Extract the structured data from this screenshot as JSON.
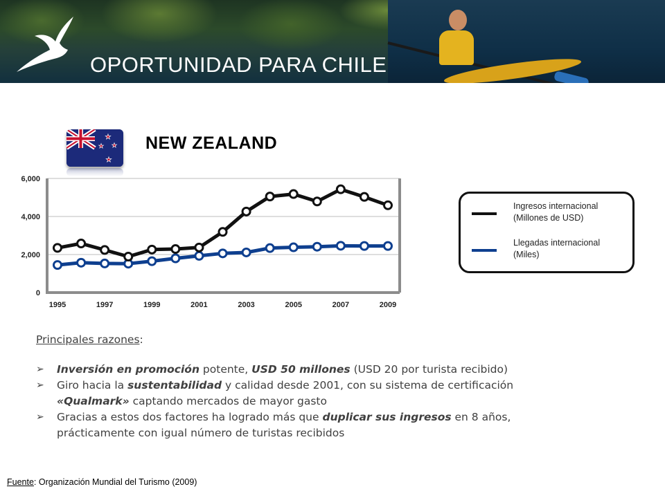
{
  "header": {
    "title": "OPORTUNIDAD PARA CHILE"
  },
  "country": {
    "name": "NEW ZEALAND"
  },
  "chart_data": {
    "type": "line",
    "x": [
      1995,
      1996,
      1997,
      1998,
      1999,
      2000,
      2001,
      2002,
      2003,
      2004,
      2005,
      2006,
      2007,
      2008,
      2009
    ],
    "series": [
      {
        "name": "Ingresos internacional (Millones de USD)",
        "color": "#111111",
        "values": [
          2350,
          2580,
          2240,
          1890,
          2260,
          2290,
          2370,
          3190,
          4260,
          5050,
          5180,
          4790,
          5430,
          5030,
          4590
        ]
      },
      {
        "name": "Llegadas internacional (Miles)",
        "color": "#0e3f8f",
        "values": [
          1450,
          1570,
          1530,
          1520,
          1650,
          1800,
          1930,
          2060,
          2110,
          2340,
          2380,
          2410,
          2460,
          2450,
          2450
        ]
      }
    ],
    "ylim": [
      0,
      6000
    ],
    "yticks": [
      "0",
      "2,000",
      "4,000",
      "6,000"
    ],
    "xticks": [
      "1995",
      "1997",
      "1999",
      "2001",
      "2003",
      "2005",
      "2007",
      "2009"
    ],
    "grid": true,
    "legend": "right"
  },
  "legend": {
    "items": [
      {
        "label": "Ingresos internacional (Millones de USD)",
        "color": "#111111"
      },
      {
        "label": "Llegadas internacional (Miles)",
        "color": "#0e3f8f"
      }
    ]
  },
  "reasons": {
    "title": "Principales razones",
    "title_suffix": ":",
    "bullets": [
      [
        {
          "t": "Inversión en promoción",
          "b": true
        },
        {
          "t": " potente, "
        },
        {
          "t": "USD 50 millones",
          "b": true
        },
        {
          "t": " (USD 20 por turista recibido)"
        }
      ],
      [
        {
          "t": "Giro hacia la "
        },
        {
          "t": "sustentabilidad",
          "b": true
        },
        {
          "t": " y calidad desde 2001, con su sistema de certificación "
        },
        {
          "t": "«Qualmark»",
          "b": true
        },
        {
          "t": " captando mercados de mayor gasto"
        }
      ],
      [
        {
          "t": "Gracias a estos dos factores ha logrado más que "
        },
        {
          "t": "duplicar sus ingresos",
          "b": true
        },
        {
          "t": " en 8 años, prácticamente con igual número de turistas recibidos"
        }
      ]
    ]
  },
  "source": {
    "label": "Fuente",
    "text": ":  Organización Mundial del Turismo  (2009)"
  }
}
